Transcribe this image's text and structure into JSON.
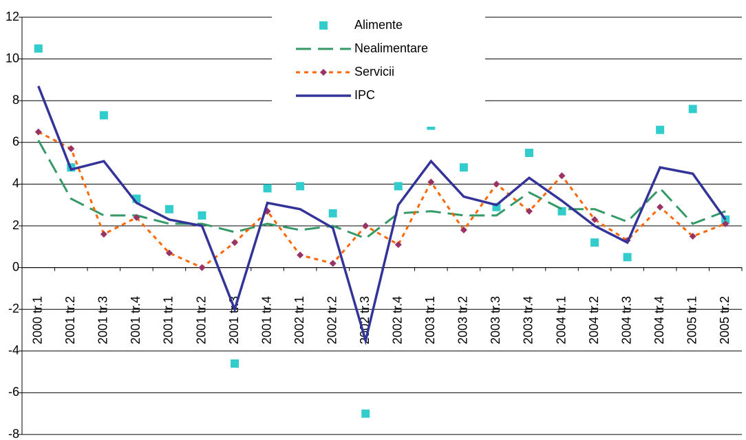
{
  "chart_data": {
    "type": "line",
    "categories": [
      "2000 tr.1",
      "2001 tr.2",
      "2001 tr.3",
      "2001 tr.4",
      "2001 tr.1",
      "2001 tr.2",
      "2001 tr.3",
      "2001 tr.4",
      "2002 tr.1",
      "2002 tr.2",
      "2002 tr.3",
      "2002 tr.4",
      "2003 tr.1",
      "2003 tr.2",
      "2003 tr.3",
      "2003 tr.4",
      "2004 tr.1",
      "2004 tr.2",
      "2004 tr.3",
      "2004 tr.4",
      "2005 tr.1",
      "2005 tr.2"
    ],
    "series": [
      {
        "name": "Alimente",
        "color": "#33cccc",
        "line_style": "none",
        "marker": "square",
        "values": [
          10.5,
          4.8,
          7.3,
          3.3,
          2.8,
          2.5,
          -4.6,
          3.8,
          3.9,
          2.6,
          -7.0,
          3.9,
          6.8,
          4.8,
          2.9,
          5.5,
          2.7,
          1.2,
          0.5,
          6.6,
          7.6,
          2.3
        ]
      },
      {
        "name": "Nealimentare",
        "color": "#339966",
        "line_style": "dashed",
        "marker": "none",
        "values": [
          6.1,
          3.3,
          2.5,
          2.5,
          2.1,
          2.1,
          1.7,
          2.1,
          1.8,
          2.0,
          1.4,
          2.6,
          2.7,
          2.5,
          2.5,
          3.6,
          2.8,
          2.8,
          2.2,
          3.8,
          2.1,
          2.7
        ]
      },
      {
        "name": "Servicii",
        "color": "#ff6600",
        "line_style": "dotted",
        "marker": "diamond",
        "marker_color": "#993366",
        "values": [
          6.5,
          5.7,
          1.6,
          2.4,
          0.7,
          0.0,
          1.2,
          2.7,
          0.6,
          0.2,
          2.0,
          1.1,
          4.1,
          1.8,
          4.0,
          2.7,
          4.4,
          2.3,
          1.3,
          2.9,
          1.5,
          2.1
        ]
      },
      {
        "name": "IPC",
        "color": "#333399",
        "line_style": "solid",
        "marker": "none",
        "values": [
          8.7,
          4.7,
          5.1,
          3.1,
          2.3,
          2.0,
          -2.0,
          3.1,
          2.8,
          1.9,
          -3.5,
          3.0,
          5.1,
          3.4,
          3.0,
          4.3,
          3.2,
          2.0,
          1.2,
          4.8,
          4.5,
          2.3
        ]
      }
    ],
    "ylim": [
      -8,
      12
    ],
    "yticks": [
      -8,
      -6,
      -4,
      -2,
      0,
      2,
      4,
      6,
      8,
      10,
      12
    ],
    "grid": true,
    "legend": "top"
  }
}
